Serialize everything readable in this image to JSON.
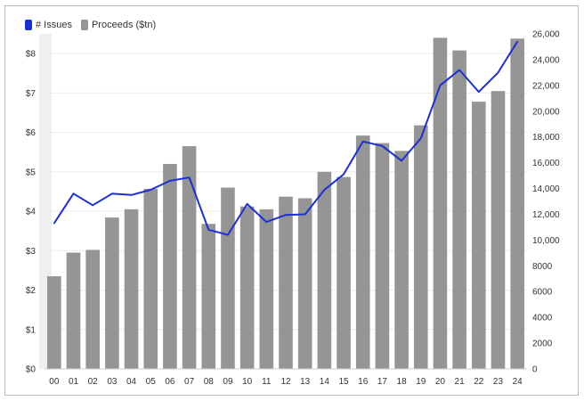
{
  "chart_data": {
    "type": "bar",
    "categories": [
      "00",
      "01",
      "02",
      "03",
      "04",
      "05",
      "06",
      "07",
      "08",
      "09",
      "10",
      "11",
      "12",
      "13",
      "14",
      "15",
      "16",
      "17",
      "18",
      "19",
      "20",
      "21",
      "22",
      "23",
      "24"
    ],
    "series": [
      {
        "name": "Proceeds ($tn)",
        "kind": "bar",
        "axis": "left",
        "color": "#959595",
        "values": [
          2.35,
          2.95,
          3.02,
          3.84,
          4.05,
          4.57,
          5.2,
          5.65,
          3.68,
          4.6,
          4.12,
          4.05,
          4.37,
          4.33,
          5.0,
          4.87,
          5.92,
          5.73,
          5.53,
          6.18,
          8.4,
          8.08,
          6.78,
          7.05,
          8.38
        ]
      },
      {
        "name": "# Issues",
        "kind": "line",
        "axis": "right",
        "color": "#1a2fd6",
        "values": [
          11300,
          13600,
          12700,
          13600,
          13500,
          13900,
          14600,
          14850,
          10800,
          10400,
          12800,
          11400,
          11950,
          12000,
          13900,
          15100,
          17650,
          17300,
          16150,
          17900,
          22000,
          23200,
          21500,
          23000,
          25400
        ]
      }
    ],
    "y_left": {
      "ticks": [
        "$0",
        "$1",
        "$2",
        "$3",
        "$4",
        "$5",
        "$6",
        "$7",
        "$8"
      ],
      "ylim": [
        0,
        8.5
      ]
    },
    "y_right": {
      "ticks": [
        "0",
        "2000",
        "4000",
        "6000",
        "8000",
        "10,000",
        "12,000",
        "14,000",
        "16,000",
        "18,000",
        "20,000",
        "22,000",
        "24,000",
        "26,000"
      ],
      "ylim": [
        0,
        26000
      ]
    },
    "legend_position": "top-left",
    "grid": true
  },
  "legend": {
    "issues_label": "# Issues",
    "proceeds_label": "Proceeds ($tn)"
  }
}
